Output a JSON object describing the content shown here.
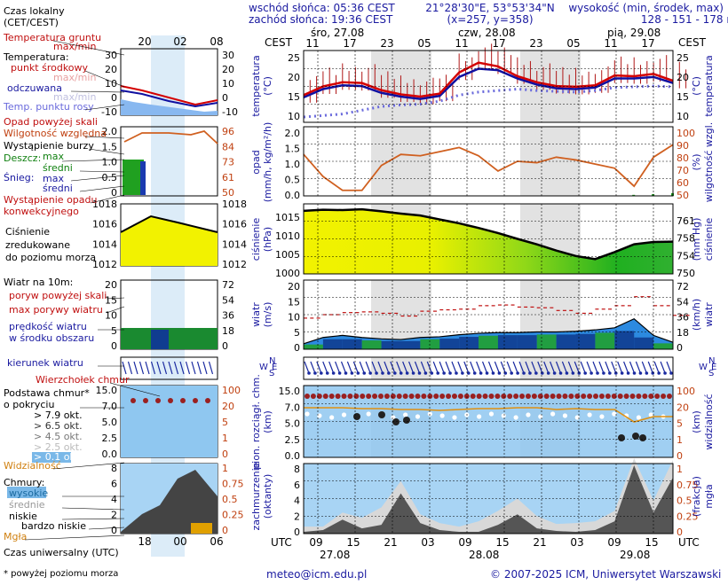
{
  "header": {
    "sunrise": "wschód słońca: 05:36 CEST",
    "sunset": "zachód słońca: 19:36 CEST",
    "coords": "21°28'30\"E, 53°53'34\"N",
    "grid": "(x=257, y=358)",
    "elev_title": "wysokość (min, środek, max)",
    "elev_values": "128 - 151 - 178 m"
  },
  "footer": {
    "email": "meteo@icm.edu.pl",
    "copyright": "© 2007-2025 ICM, Uniwersytet Warszawski",
    "note": "* powyżej poziomu morza"
  },
  "time_axis": {
    "cest_label": "CEST",
    "utc_label": "UTC",
    "days": [
      "śro, 27.08",
      "czw, 28.08",
      "pią, 29.08"
    ],
    "top_hours": [
      "11",
      "17",
      "23",
      "05",
      "11",
      "17",
      "23",
      "05",
      "11",
      "17"
    ],
    "bottom_hours": [
      "09",
      "15",
      "21",
      "03",
      "09",
      "15",
      "21",
      "03",
      "09",
      "15"
    ],
    "dates_bottom": [
      "27.08",
      "28.08",
      "29.08"
    ]
  },
  "legend": {
    "local_time": "Czas lokalny",
    "local_time2": "(CET/CEST)",
    "legend_hours": [
      "20",
      "02",
      "08"
    ],
    "utc_hours": [
      "18",
      "00",
      "06"
    ],
    "soil_temp": "Temperatura gruntu",
    "maxmin1": "max/min",
    "temperature": "Temperatura:",
    "midpoint": "punkt środkowy",
    "maxmin2": "max/min",
    "feels": "odczuwana",
    "maxmin3": "max/min",
    "dew": "Temp. punktu rosy",
    "precip_over": "Opad powyżej skali",
    "humidity": "Wilgotność względna",
    "storm": "Wystąpienie burzy",
    "rain": "Deszcz:",
    "rain_max": "max",
    "rain_mean": "średni",
    "snow": "Śnieg:",
    "snow_max": "max",
    "snow_mean": "średni",
    "convective": "Wystąpienie opadu",
    "convective2": "konwekcyjnego",
    "pressure1": "Ciśnienie",
    "pressure2": "zredukowane",
    "pressure3": "do poziomu morza",
    "wind": "Wiatr na 10m:",
    "gust_over": "poryw powyżej skali",
    "gust_max": "max porywy wiatru",
    "wind_speed": "prędkość wiatru",
    "wind_speed2": "w środku obszaru",
    "wind_dir": "kierunek wiatru",
    "cloud_top": "Wierzchołek chmur",
    "cloud_base": "Podstawa chmur*",
    "cloud_base2": "o pokryciu",
    "okt1": "> 7.9 okt.",
    "okt2": "> 6.5 okt.",
    "okt3": "> 4.5 okt.",
    "okt4": "> 2.5 okt.",
    "okt5": "> 0.1 okt.",
    "visibility": "Widzialność",
    "clouds": "Chmury:",
    "high": "wysokie",
    "mid": "średnie",
    "low": "niskie",
    "very_low": "bardzo niskie",
    "fog": "Mgła",
    "utc_time": "Czas uniwersalny (UTC)"
  },
  "axis_labels": {
    "temp_left": [
      "temperatura",
      "(°C)"
    ],
    "temp_right": "(°C)",
    "temp_right2": "temperatura",
    "precip_left": [
      "opad",
      "(mm/h, kg/m²/h)"
    ],
    "humid_right": [
      "(%)",
      "wilgotność wzgl."
    ],
    "press_left": [
      "ciśnienie",
      "(hPa)"
    ],
    "press_right": [
      "(mm Hg)",
      "ciśnienie"
    ],
    "wind_left": [
      "wiatr",
      "(m/s)"
    ],
    "wind_right": [
      "(km/h)",
      "wiatr"
    ],
    "dir_letters": [
      "N",
      "W",
      "E",
      "S"
    ],
    "cloud_left": [
      "pion. rozciągł. chm.",
      "(km)"
    ],
    "vis_right": [
      "(km)",
      "widzialność"
    ],
    "cover_left": [
      "zachmurzenie",
      "(oktanty)"
    ],
    "fog_right": [
      "(frakcja)",
      "mgła"
    ]
  },
  "ticks": {
    "temp": [
      "25",
      "20",
      "15",
      "10"
    ],
    "precip": [
      "2.0",
      "1.5",
      "1.0",
      "0.5",
      "0.0"
    ],
    "humid": [
      "100",
      "90",
      "80",
      "70",
      "60",
      "50"
    ],
    "press": [
      "1015",
      "1010",
      "1005",
      "1000"
    ],
    "press_mm": [
      "761",
      "758",
      "754",
      "750"
    ],
    "wind": [
      "20",
      "15",
      "10",
      "5",
      "0"
    ],
    "wind_kmh": [
      "72",
      "54",
      "36",
      "18",
      "0"
    ],
    "cloud": [
      "15.0",
      "7.0",
      "5.0",
      "2.5",
      "0.0"
    ],
    "vis": [
      "100",
      "20",
      "5",
      "1",
      "0"
    ],
    "cover": [
      "8",
      "6",
      "4",
      "2",
      "0"
    ],
    "fog": [
      "1",
      "0.75",
      "0.5",
      "0.25",
      "0"
    ],
    "leg_temp": [
      "30",
      "20",
      "10",
      "0",
      "-10"
    ],
    "leg_precip": [
      "2.0",
      "1.5",
      "1.0",
      "0.5",
      "0"
    ],
    "leg_humid": [
      "96",
      "84",
      "73",
      "61",
      "50"
    ],
    "leg_press": [
      "1018",
      "1016",
      "1014",
      "1012"
    ],
    "leg_wind": [
      "20",
      "15",
      "10",
      "5",
      "0"
    ],
    "leg_wind_kmh": [
      "72",
      "54",
      "36",
      "18",
      "0"
    ],
    "leg_cloud": [
      "15.0",
      "7.0",
      "5.0",
      "2.5",
      "0.0"
    ],
    "leg_vis": [
      "100",
      "20",
      "5",
      "1",
      "0"
    ],
    "leg_cover": [
      "8",
      "6",
      "4",
      "2",
      "0"
    ],
    "leg_fog": [
      "1",
      "0.75",
      "0.5",
      "0.25",
      "0"
    ]
  },
  "colors": {
    "temp": "#d40000",
    "feels": "#1010a0",
    "dew": "#6a6adc",
    "humidity": "#d06020",
    "pressure_fill": "#f2f200",
    "pressure_fill2": "#20b020",
    "wind_fill": "#2c8ae0",
    "wind_dark": "#103c90",
    "wind_green": "#20a030",
    "cloud_bg": "#8fc7f0",
    "night": "#e0e0e0",
    "legend_bg": "#dcecf8"
  },
  "chart_data": [
    {
      "type": "line",
      "title": "temperatura",
      "ylabel": "temperatura (°C)",
      "x": [
        "27.08 11",
        "27.08 14",
        "27.08 17",
        "27.08 20",
        "27.08 23",
        "28.08 02",
        "28.08 05",
        "28.08 08",
        "28.08 11",
        "28.08 14",
        "28.08 17",
        "28.08 20",
        "28.08 23",
        "29.08 02",
        "29.08 05",
        "29.08 08",
        "29.08 11",
        "29.08 14",
        "29.08 17",
        "29.08 19"
      ],
      "ylim": [
        8,
        27
      ],
      "series": [
        {
          "name": "punkt środkowy",
          "values": [
            15.2,
            17.5,
            18.6,
            18.4,
            16.5,
            15.4,
            14.8,
            15.6,
            21.2,
            23.8,
            22.8,
            20.2,
            18.6,
            17.6,
            17.4,
            17.8,
            20.4,
            20.2,
            20.8,
            19.0
          ]
        },
        {
          "name": "odczuwana",
          "values": [
            14.6,
            16.8,
            17.8,
            17.6,
            15.8,
            14.8,
            14.2,
            15.0,
            20.0,
            22.2,
            21.8,
            19.6,
            18.0,
            17.0,
            16.8,
            17.2,
            19.6,
            19.6,
            20.0,
            18.4
          ]
        },
        {
          "name": "Temp. punktu rosy",
          "values": [
            9.4,
            9.8,
            10.2,
            11.2,
            12.2,
            12.6,
            12.8,
            13.6,
            15.2,
            16.0,
            16.4,
            16.8,
            16.4,
            16.2,
            16.0,
            16.4,
            17.2,
            17.4,
            17.6,
            17.4
          ]
        }
      ]
    },
    {
      "type": "line",
      "title": "opad",
      "ylabel": "opad (mm/h, kg/m²/h)",
      "x": [
        "27.08 11",
        "27.08 14",
        "27.08 17",
        "27.08 20",
        "27.08 23",
        "28.08 02",
        "28.08 05",
        "28.08 08",
        "28.08 11",
        "28.08 14",
        "28.08 17",
        "28.08 20",
        "28.08 23",
        "29.08 02",
        "29.08 05",
        "29.08 08",
        "29.08 11",
        "29.08 14",
        "29.08 17",
        "29.08 19"
      ],
      "ylim": [
        0,
        2
      ],
      "series": [
        {
          "name": "Wilgotność względna",
          "values": [
            80,
            64,
            54,
            54,
            72,
            80,
            79,
            82,
            85,
            79,
            68,
            75,
            74,
            78,
            76,
            73,
            70,
            57,
            78,
            87
          ]
        },
        {
          "name": "Deszcz",
          "values": [
            0,
            0,
            0,
            0,
            0,
            0,
            0,
            0,
            0,
            0,
            0,
            0,
            0,
            0,
            0,
            0,
            0,
            0.03,
            0.05,
            0.08
          ]
        }
      ]
    },
    {
      "type": "area",
      "title": "ciśnienie",
      "ylabel": "ciśnienie (hPa)",
      "x": [
        "27.08 11",
        "27.08 14",
        "27.08 17",
        "27.08 20",
        "27.08 23",
        "28.08 02",
        "28.08 05",
        "28.08 08",
        "28.08 11",
        "28.08 14",
        "28.08 17",
        "28.08 20",
        "28.08 23",
        "29.08 02",
        "29.08 05",
        "29.08 08",
        "29.08 11",
        "29.08 14",
        "29.08 17",
        "29.08 19"
      ],
      "ylim": [
        1000,
        1018
      ],
      "series": [
        {
          "name": "Ciśnienie",
          "values": [
            1016.2,
            1016.5,
            1016.4,
            1016.6,
            1016.1,
            1015.5,
            1015.0,
            1014.0,
            1013.0,
            1011.8,
            1010.5,
            1009.0,
            1007.6,
            1006.0,
            1004.6,
            1003.8,
            1005.6,
            1007.6,
            1008.2,
            1008.3
          ]
        }
      ]
    },
    {
      "type": "area",
      "title": "wiatr",
      "ylabel": "wiatr (m/s)",
      "x": [
        "27.08 11",
        "27.08 14",
        "27.08 17",
        "27.08 20",
        "27.08 23",
        "28.08 02",
        "28.08 05",
        "28.08 08",
        "28.08 11",
        "28.08 14",
        "28.08 17",
        "28.08 20",
        "28.08 23",
        "29.08 02",
        "29.08 05",
        "29.08 08",
        "29.08 11",
        "29.08 14",
        "29.08 17",
        "29.08 19"
      ],
      "ylim": [
        0,
        20
      ],
      "series": [
        {
          "name": "prędkość wiatru",
          "values": [
            1.6,
            3.4,
            4.0,
            3.4,
            3.0,
            2.8,
            3.4,
            3.6,
            4.2,
            4.6,
            4.8,
            4.8,
            5.0,
            5.0,
            5.2,
            5.6,
            6.2,
            8.8,
            4.0,
            2.0
          ]
        },
        {
          "name": "max porywy wiatru",
          "values": [
            9.0,
            10.0,
            10.6,
            10.8,
            10.4,
            9.6,
            11.0,
            11.4,
            11.6,
            12.6,
            12.8,
            12.2,
            12.0,
            11.2,
            10.4,
            11.6,
            12.6,
            15.2,
            12.6,
            9.8
          ]
        }
      ]
    },
    {
      "type": "area",
      "title": "zachmurzenie",
      "ylabel": "zachmurzenie (oktanty)",
      "x": [
        "27.08 09",
        "27.08 12",
        "27.08 15",
        "27.08 18",
        "27.08 21",
        "28.08 00",
        "28.08 03",
        "28.08 06",
        "28.08 09",
        "28.08 12",
        "28.08 15",
        "28.08 18",
        "28.08 21",
        "29.08 00",
        "29.08 03",
        "29.08 06",
        "29.08 09",
        "29.08 12",
        "29.08 15",
        "29.08 18"
      ],
      "ylim": [
        0,
        8
      ],
      "series": [
        {
          "name": "niskie",
          "values": [
            0.2,
            0.4,
            1.6,
            0.6,
            1.0,
            4.6,
            1.2,
            0.4,
            0.2,
            0.2,
            1.0,
            2.2,
            0.6,
            0.3,
            0.2,
            0.4,
            1.4,
            7.8,
            2.4,
            6.4
          ]
        },
        {
          "name": "średnie",
          "values": [
            0.6,
            0.4,
            0.8,
            1.2,
            2.0,
            1.4,
            1.0,
            0.8,
            0.6,
            1.2,
            1.6,
            1.8,
            1.4,
            0.8,
            1.0,
            1.0,
            1.2,
            0.8,
            1.4,
            2.0
          ]
        }
      ]
    }
  ]
}
